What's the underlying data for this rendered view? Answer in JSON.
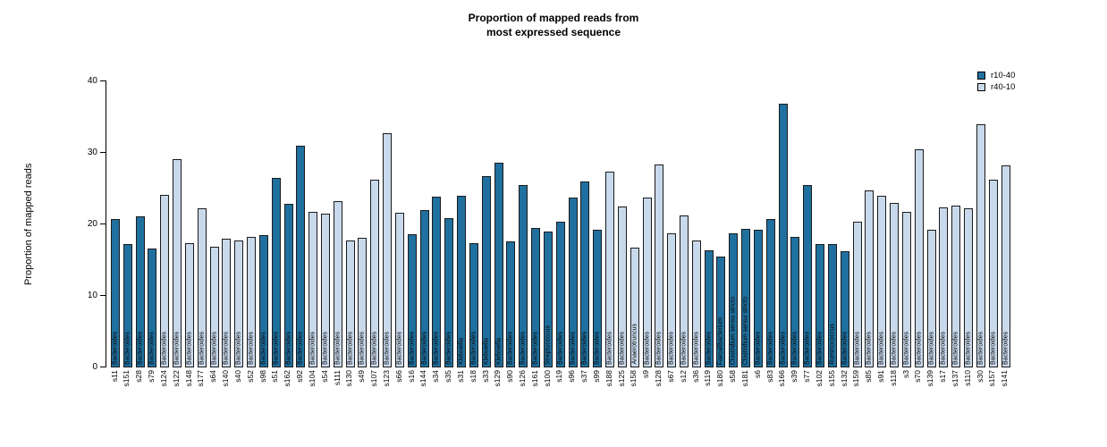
{
  "title": {
    "line1": "Proportion of mapped reads from",
    "line2": "most expressed sequence"
  },
  "y_axis": {
    "label": "Proportion of mapped reads"
  },
  "legend": {
    "items": [
      {
        "label": "r10-40",
        "color": "#20709F"
      },
      {
        "label": "r40-10",
        "color": "#C9D9EC"
      }
    ]
  },
  "chart_data": {
    "type": "bar",
    "title": "Proportion of mapped reads from most expressed sequence",
    "xlabel": "",
    "ylabel": "Proportion of mapped reads",
    "ylim": [
      0,
      40
    ],
    "yticks": [
      0,
      10,
      20,
      30,
      40
    ],
    "grid": false,
    "legend_position": "top-right",
    "legend": [
      {
        "name": "r10-40",
        "color": "#20709F"
      },
      {
        "name": "r40-10",
        "color": "#C9D9EC"
      }
    ],
    "bar_label_note": "each bar is annotated inside with the genus of the most expressed sequence, rotated vertically",
    "bars": [
      {
        "sample": "s11",
        "genus": "Bacteroides",
        "value": 20.7,
        "group": "r10-40"
      },
      {
        "sample": "s151",
        "genus": "Bacteroides",
        "value": 17.2,
        "group": "r10-40"
      },
      {
        "sample": "s28",
        "genus": "Bacteroides",
        "value": 21.1,
        "group": "r10-40"
      },
      {
        "sample": "s79",
        "genus": "Bacteroides",
        "value": 16.6,
        "group": "r10-40"
      },
      {
        "sample": "s124",
        "genus": "Bacteroides",
        "value": 24.1,
        "group": "r40-10"
      },
      {
        "sample": "s122",
        "genus": "Bacteroides",
        "value": 29.1,
        "group": "r40-10"
      },
      {
        "sample": "s148",
        "genus": "Bacteroides",
        "value": 17.4,
        "group": "r40-10"
      },
      {
        "sample": "s177",
        "genus": "Bacteroides",
        "value": 22.2,
        "group": "r40-10"
      },
      {
        "sample": "s64",
        "genus": "Bacteroides",
        "value": 16.9,
        "group": "r40-10"
      },
      {
        "sample": "s140",
        "genus": "Bacteroides",
        "value": 18.0,
        "group": "r40-10"
      },
      {
        "sample": "s40",
        "genus": "Bacteroides",
        "value": 17.7,
        "group": "r40-10"
      },
      {
        "sample": "s52",
        "genus": "Bacteroides",
        "value": 18.2,
        "group": "r40-10"
      },
      {
        "sample": "s98",
        "genus": "Bacteroides",
        "value": 18.5,
        "group": "r10-40"
      },
      {
        "sample": "s51",
        "genus": "Bacteroides",
        "value": 26.5,
        "group": "r10-40"
      },
      {
        "sample": "s162",
        "genus": "Bacteroides",
        "value": 22.9,
        "group": "r10-40"
      },
      {
        "sample": "s92",
        "genus": "Bacteroides",
        "value": 31.0,
        "group": "r10-40"
      },
      {
        "sample": "s104",
        "genus": "Bacteroides",
        "value": 21.8,
        "group": "r40-10"
      },
      {
        "sample": "s54",
        "genus": "Bacteroides",
        "value": 21.5,
        "group": "r40-10"
      },
      {
        "sample": "s111",
        "genus": "Bacteroides",
        "value": 23.3,
        "group": "r40-10"
      },
      {
        "sample": "s130",
        "genus": "Bacteroides",
        "value": 17.8,
        "group": "r40-10"
      },
      {
        "sample": "s49",
        "genus": "Bacteroides",
        "value": 18.1,
        "group": "r40-10"
      },
      {
        "sample": "s107",
        "genus": "Bacteroides",
        "value": 26.2,
        "group": "r40-10"
      },
      {
        "sample": "s123",
        "genus": "Bacteroides",
        "value": 32.8,
        "group": "r40-10"
      },
      {
        "sample": "s66",
        "genus": "Bacteroides",
        "value": 21.6,
        "group": "r40-10"
      },
      {
        "sample": "s16",
        "genus": "Bacteroides",
        "value": 18.6,
        "group": "r10-40"
      },
      {
        "sample": "s144",
        "genus": "Bacteroides",
        "value": 22.0,
        "group": "r10-40"
      },
      {
        "sample": "s34",
        "genus": "Bacteroides",
        "value": 23.9,
        "group": "r10-40"
      },
      {
        "sample": "s35",
        "genus": "Bacteroides",
        "value": 20.9,
        "group": "r10-40"
      },
      {
        "sample": "s31",
        "genus": "Klebsiella",
        "value": 24.0,
        "group": "r10-40"
      },
      {
        "sample": "s18",
        "genus": "Bacteroides",
        "value": 17.4,
        "group": "r10-40"
      },
      {
        "sample": "s33",
        "genus": "Klebsiella",
        "value": 26.7,
        "group": "r10-40"
      },
      {
        "sample": "s129",
        "genus": "Klebsiella",
        "value": 28.6,
        "group": "r10-40"
      },
      {
        "sample": "s90",
        "genus": "Bacteroides",
        "value": 17.6,
        "group": "r10-40"
      },
      {
        "sample": "s126",
        "genus": "Bacteroides",
        "value": 25.5,
        "group": "r10-40"
      },
      {
        "sample": "s161",
        "genus": "Bacteroides",
        "value": 19.5,
        "group": "r10-40"
      },
      {
        "sample": "s100",
        "genus": "Streptococcus",
        "value": 19.0,
        "group": "r10-40"
      },
      {
        "sample": "s19",
        "genus": "Bacteroides",
        "value": 20.4,
        "group": "r10-40"
      },
      {
        "sample": "s96",
        "genus": "Bacteroides",
        "value": 23.8,
        "group": "r10-40"
      },
      {
        "sample": "s37",
        "genus": "Bacteroides",
        "value": 26.0,
        "group": "r10-40"
      },
      {
        "sample": "s99",
        "genus": "Bacteroides",
        "value": 19.3,
        "group": "r10-40"
      },
      {
        "sample": "s188",
        "genus": "Bacteroides",
        "value": 27.4,
        "group": "r40-10"
      },
      {
        "sample": "s125",
        "genus": "Bacteroides",
        "value": 22.5,
        "group": "r40-10"
      },
      {
        "sample": "s158",
        "genus": "Anaerotruncus",
        "value": 16.8,
        "group": "r40-10"
      },
      {
        "sample": "s9",
        "genus": "Bacteroides",
        "value": 23.8,
        "group": "r40-10"
      },
      {
        "sample": "s128",
        "genus": "Bacteroides",
        "value": 28.4,
        "group": "r40-10"
      },
      {
        "sample": "s67",
        "genus": "Bacteroides",
        "value": 18.8,
        "group": "r40-10"
      },
      {
        "sample": "s12",
        "genus": "Bacteroides",
        "value": 21.2,
        "group": "r40-10"
      },
      {
        "sample": "s36",
        "genus": "Bacteroides",
        "value": 17.8,
        "group": "r40-10"
      },
      {
        "sample": "s119",
        "genus": "Bacteroides",
        "value": 16.4,
        "group": "r10-40"
      },
      {
        "sample": "s180",
        "genus": "Faecalibacterium",
        "value": 15.5,
        "group": "r10-40"
      },
      {
        "sample": "s58",
        "genus": "Clostridium sensu stricto",
        "value": 18.8,
        "group": "r10-40"
      },
      {
        "sample": "s181",
        "genus": "Clostridium sensu stricto",
        "value": 19.4,
        "group": "r10-40"
      },
      {
        "sample": "s6",
        "genus": "Bacteroides",
        "value": 19.3,
        "group": "r10-40"
      },
      {
        "sample": "s83",
        "genus": "Bacteroides",
        "value": 20.7,
        "group": "r10-40"
      },
      {
        "sample": "s166",
        "genus": "Bacteroides",
        "value": 36.9,
        "group": "r10-40"
      },
      {
        "sample": "s39",
        "genus": "Bacteroides",
        "value": 18.3,
        "group": "r10-40"
      },
      {
        "sample": "s77",
        "genus": "Bacteroides",
        "value": 25.5,
        "group": "r10-40"
      },
      {
        "sample": "s102",
        "genus": "Bacteroides",
        "value": 17.2,
        "group": "r10-40"
      },
      {
        "sample": "s155",
        "genus": "Ruminococcus",
        "value": 17.3,
        "group": "r10-40"
      },
      {
        "sample": "s132",
        "genus": "Bacteroides",
        "value": 16.2,
        "group": "r10-40"
      },
      {
        "sample": "s159",
        "genus": "Bacteroides",
        "value": 20.4,
        "group": "r40-10"
      },
      {
        "sample": "s85",
        "genus": "Bacteroides",
        "value": 24.8,
        "group": "r40-10"
      },
      {
        "sample": "s91",
        "genus": "Bacteroides",
        "value": 24.0,
        "group": "r40-10"
      },
      {
        "sample": "s118",
        "genus": "Bacteroides",
        "value": 23.0,
        "group": "r40-10"
      },
      {
        "sample": "s3",
        "genus": "Bacteroides",
        "value": 21.8,
        "group": "r40-10"
      },
      {
        "sample": "s70",
        "genus": "Bacteroides",
        "value": 30.5,
        "group": "r40-10"
      },
      {
        "sample": "s139",
        "genus": "Bacteroides",
        "value": 19.2,
        "group": "r40-10"
      },
      {
        "sample": "s17",
        "genus": "Bacteroides",
        "value": 22.4,
        "group": "r40-10"
      },
      {
        "sample": "s137",
        "genus": "Bacteroides",
        "value": 22.6,
        "group": "r40-10"
      },
      {
        "sample": "s110",
        "genus": "Bacteroides",
        "value": 22.3,
        "group": "r40-10"
      },
      {
        "sample": "s30",
        "genus": "Bacteroides",
        "value": 34.0,
        "group": "r40-10"
      },
      {
        "sample": "s157",
        "genus": "Bacteroides",
        "value": 26.3,
        "group": "r40-10"
      },
      {
        "sample": "s141",
        "genus": "Bacteroides",
        "value": 28.3,
        "group": "r40-10"
      }
    ]
  }
}
